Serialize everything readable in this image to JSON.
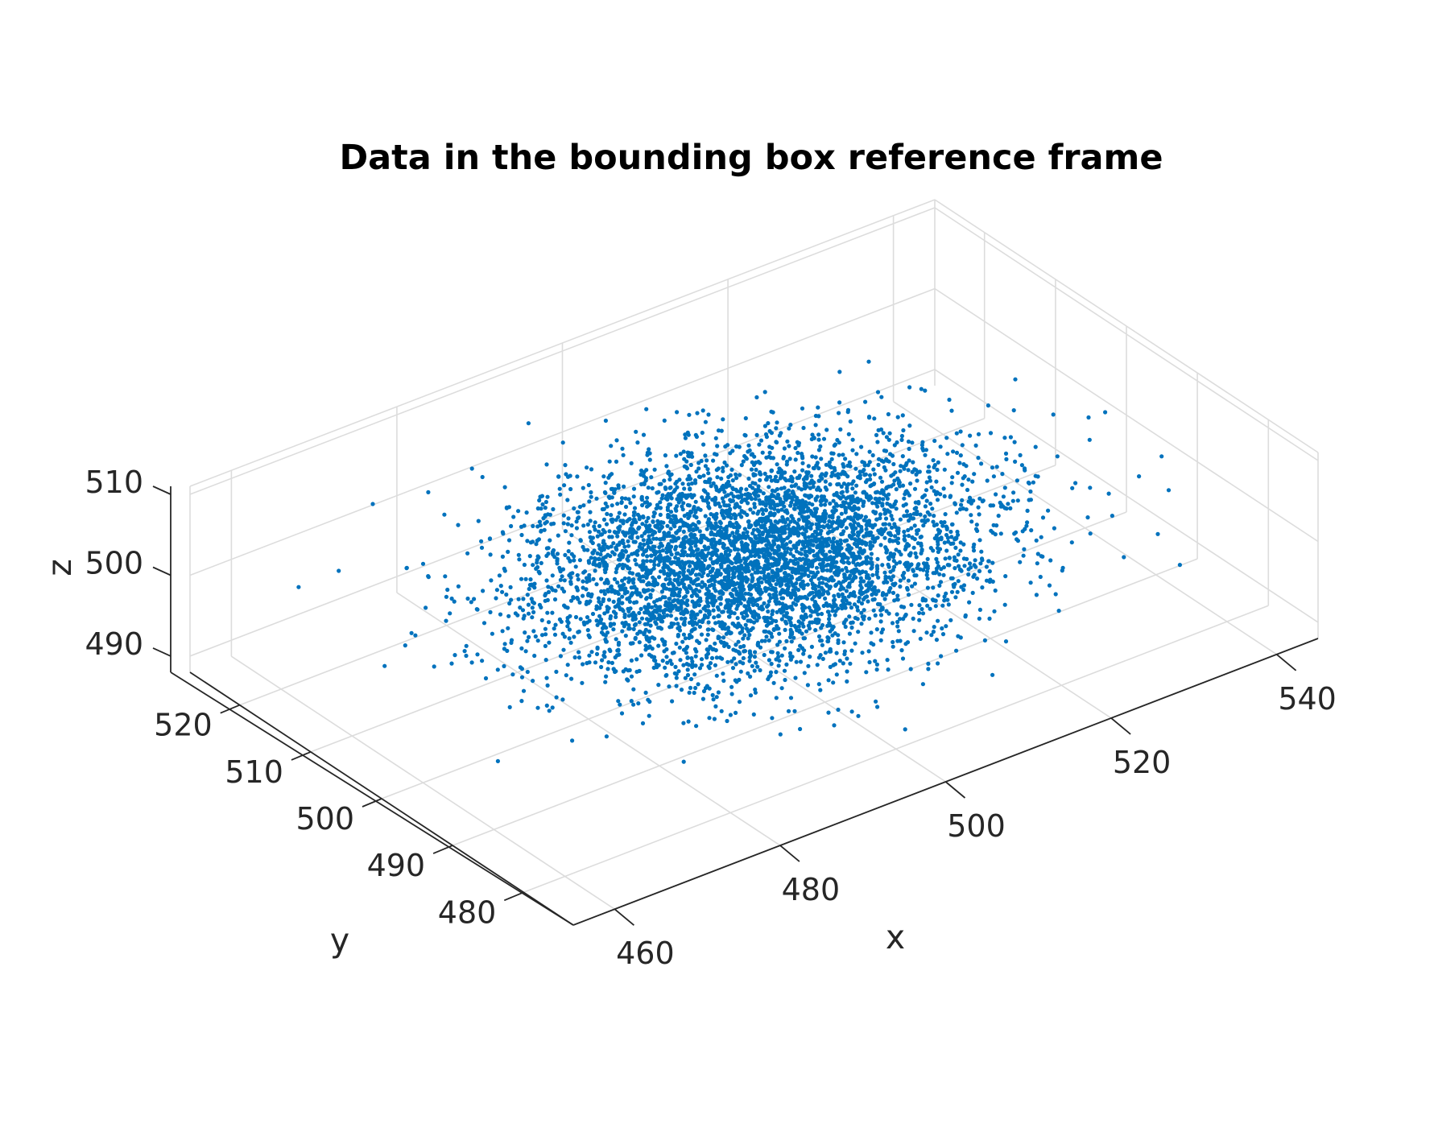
{
  "chart_data": {
    "type": "scatter",
    "title": "Data in the bounding box reference frame",
    "xlabel": "x",
    "ylabel": "y",
    "zlabel": "z",
    "xlim": [
      455,
      545
    ],
    "ylim": [
      473,
      527
    ],
    "zlim": [
      488,
      511
    ],
    "xticks": [
      "460",
      "480",
      "500",
      "520",
      "540"
    ],
    "yticks": [
      "480",
      "490",
      "500",
      "510",
      "520"
    ],
    "zticks": [
      "490",
      "500",
      "510"
    ],
    "grid": true,
    "projection": "3d-perspective",
    "marker_color": "#0072BD",
    "distribution": {
      "x_center": 500,
      "y_center": 500,
      "z_center": 500,
      "x_spread_sd": 12,
      "y_spread_sd": 8,
      "z_spread_sd": 3,
      "approx_point_count": 5000
    }
  }
}
